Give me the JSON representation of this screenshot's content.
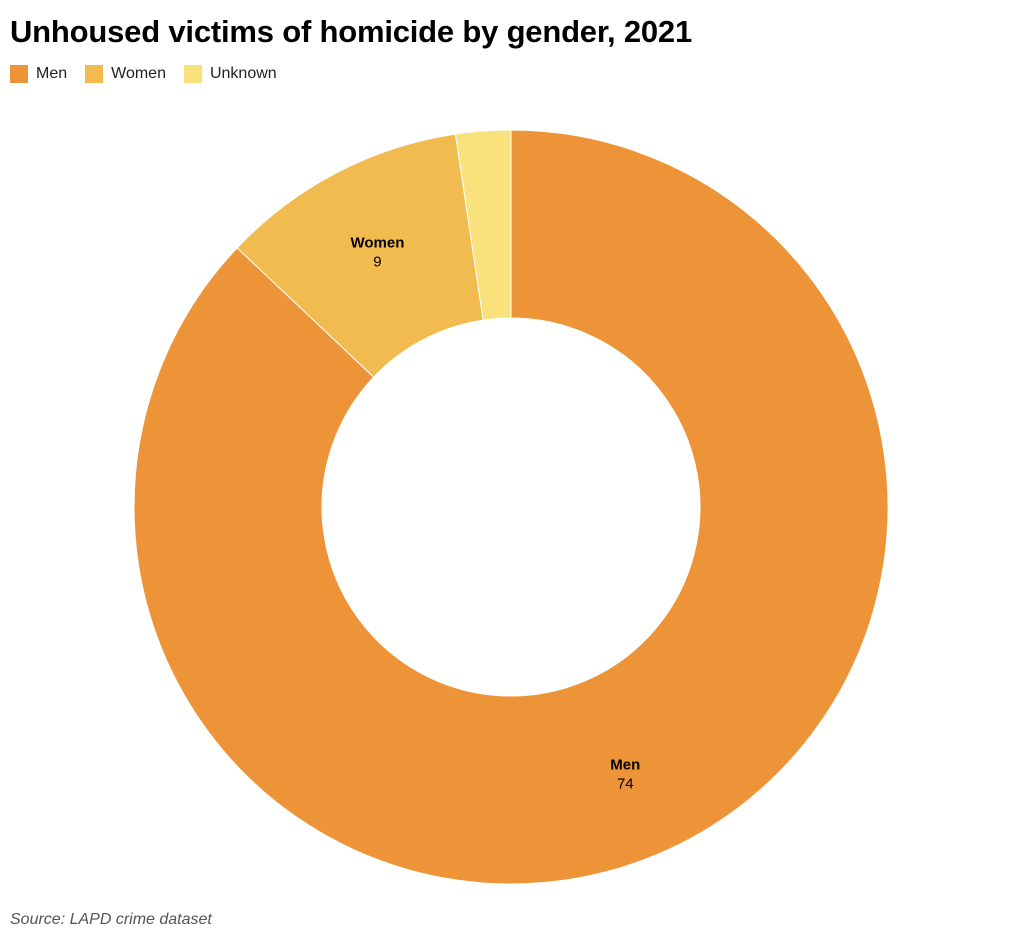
{
  "chart_data": {
    "type": "pie",
    "title": "Unhoused victims of homicide by gender, 2021",
    "donut": true,
    "legend_position": "top-left",
    "categories": [
      "Men",
      "Women",
      "Unknown"
    ],
    "values": [
      74,
      9,
      2
    ],
    "colors": [
      "#ED9438",
      "#F2BB4F",
      "#F9E17C"
    ],
    "slice_labels": [
      {
        "name": "Men",
        "value": "74"
      },
      {
        "name": "Women",
        "value": "9"
      }
    ]
  },
  "source": "Source: LAPD crime dataset"
}
